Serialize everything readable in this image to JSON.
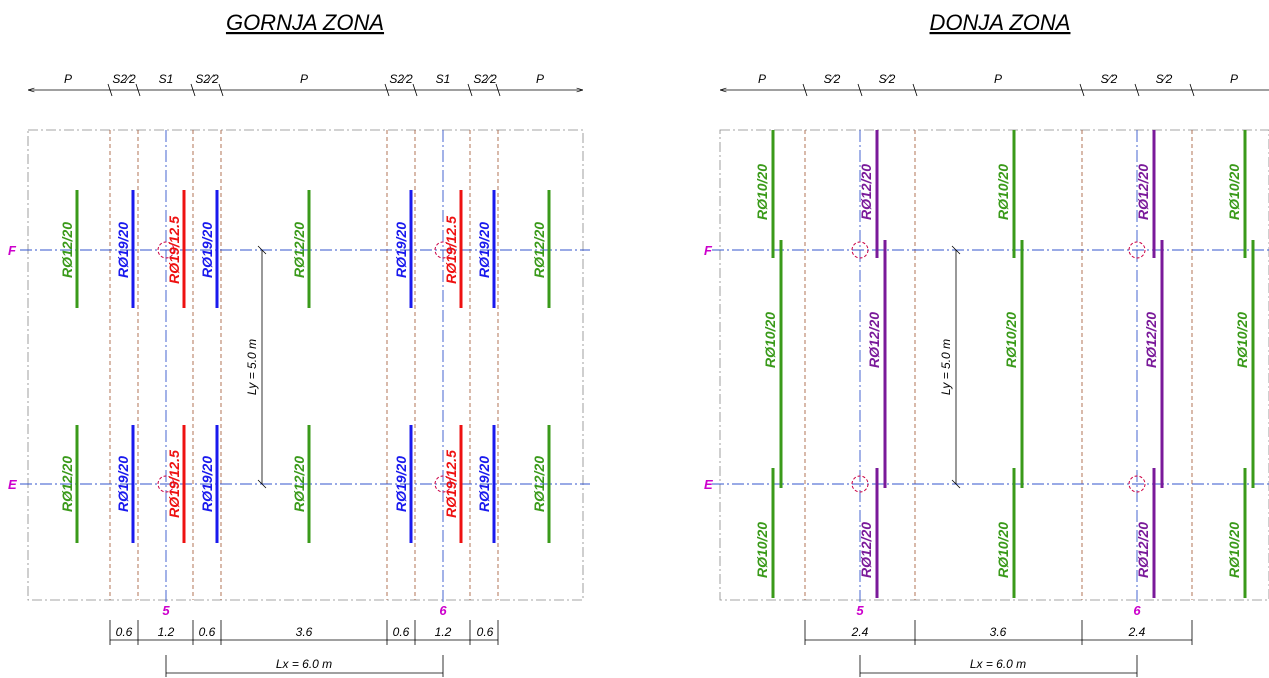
{
  "left": {
    "title": "GORNJA ZONA",
    "top_dims": [
      "P",
      "S2⁄2",
      "S1",
      "S2⁄2",
      "P",
      "S2⁄2",
      "S1",
      "S2⁄2",
      "P"
    ],
    "axis_rows": [
      "F",
      "E"
    ],
    "axis_cols": [
      "5",
      "6"
    ],
    "bar_labels": {
      "green": "RØ12/20",
      "blue": "RØ19/20",
      "red": "RØ19/12.5"
    },
    "ly": "Ly = 5.0 m",
    "bottom_dims": [
      "0.6",
      "1.2",
      "0.6",
      "3.6",
      "0.6",
      "1.2",
      "0.6"
    ],
    "lx": "Lx = 6.0 m"
  },
  "right": {
    "title": "DONJA ZONA",
    "top_dims": [
      "P",
      "S⁄2",
      "S⁄2",
      "P",
      "S⁄2",
      "S⁄2",
      "P"
    ],
    "axis_rows": [
      "F",
      "E"
    ],
    "axis_cols": [
      "5",
      "6"
    ],
    "bar_labels": {
      "green": "RØ10/20",
      "purple": "RØ12/20"
    },
    "ly": "Ly = 5.0 m",
    "bottom_dims": [
      "2.4",
      "3.6",
      "2.4"
    ],
    "lx": "Lx = 6.0 m"
  },
  "colors": {
    "green": "#3a9a1a",
    "blue": "#1a1aee",
    "red": "#ee1111",
    "purple": "#7a1a9a",
    "axis": "#3355cc",
    "strip": "#a0522d",
    "magenta": "#cc00cc"
  }
}
